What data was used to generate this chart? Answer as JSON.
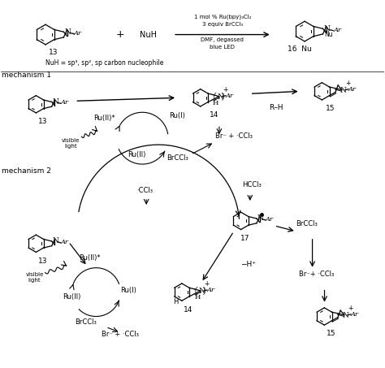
{
  "bg_color": "#ffffff",
  "text_color": "#000000",
  "fig_width": 4.74,
  "fig_height": 4.53,
  "dpi": 100,
  "top": {
    "line1": "1 mol % Ru(bpy)₃Cl₂",
    "line2": "3 equiv BrCCl₃",
    "line3": "DMF, degassed",
    "line4": "blue LED",
    "plus": "+",
    "NuH": "NuH",
    "n13": "13",
    "n16": "16  Nu",
    "nuh_def": "NuH = sp³, sp², sp carbon nucleophile"
  },
  "mech1": {
    "label": "mechanism 1",
    "n13": "13",
    "n14": "14",
    "n15": "15",
    "RuII_star": "Ru(II)*",
    "RuI": "Ru(I)",
    "RuII": "Ru(II)",
    "BrCCl3": "BrCCl₃",
    "Br_CCl3": "Br⁻ + ·CCl₃",
    "visible": "visible\nlight",
    "RH": "R–H"
  },
  "mech2": {
    "label": "mechanism 2",
    "n13": "13",
    "n14": "14",
    "n15": "15",
    "n17": "17",
    "CCl3": "·CCl₃",
    "HCCl3": "HCCl₃",
    "RuII_star": "Ru(II)*",
    "RuI": "Ru(I)",
    "RuII": "Ru(II)",
    "BrCCl3": "BrCCl₃",
    "Br_CCl3_bot": "Br⁻ + ·CCl₃",
    "BrCCl3_r": "BrCCl₃",
    "Br_CCl3_r": "Br⁻+ ·CCl₃",
    "minus_H": "−H⁺",
    "visible": "visible\nlight"
  }
}
